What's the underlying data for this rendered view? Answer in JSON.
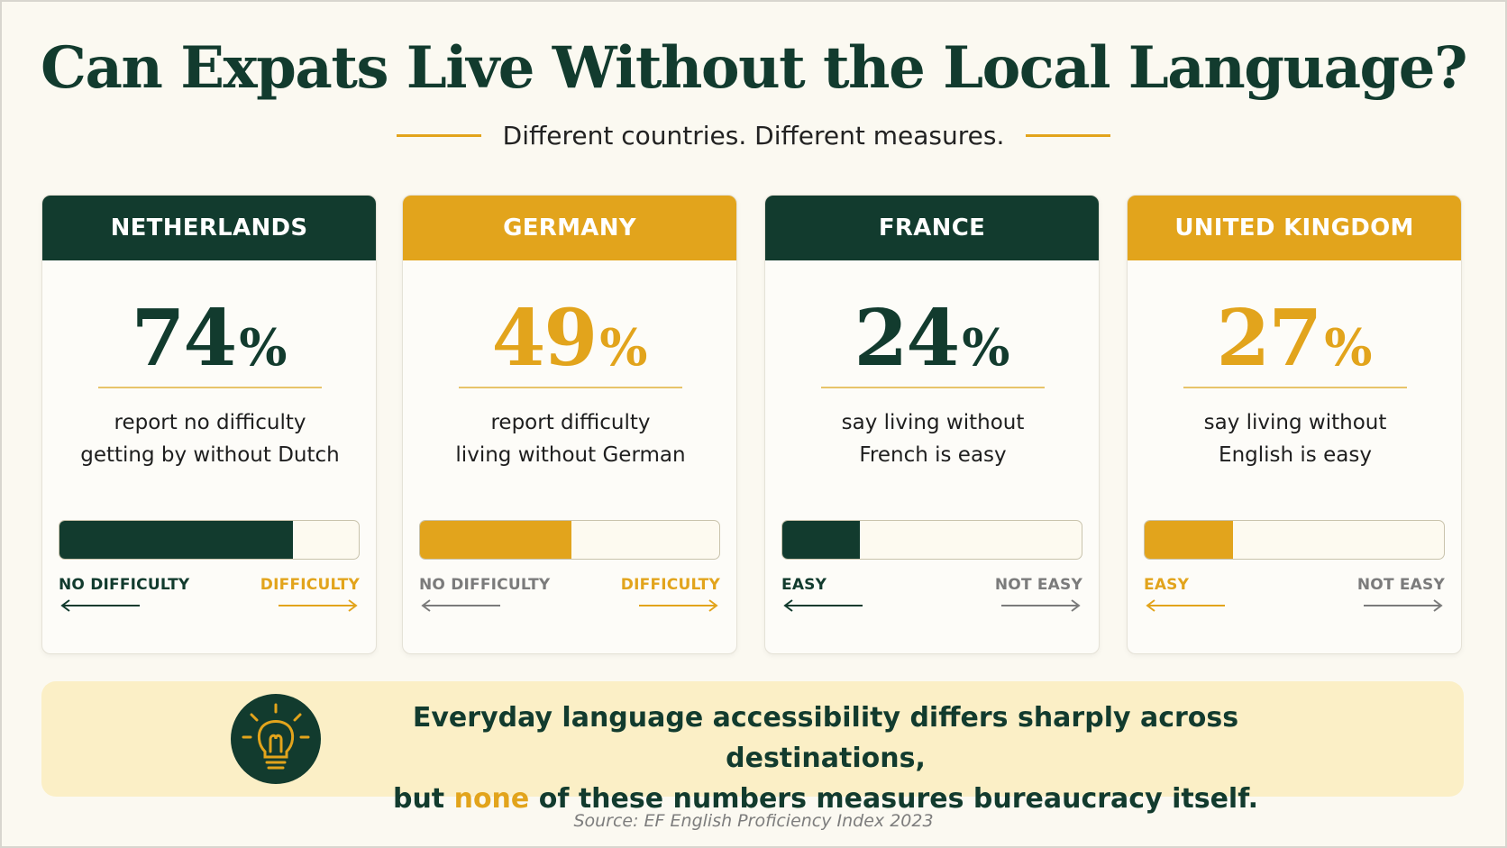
{
  "title": "Can Expats Live Without the Local Language?",
  "subtitle": "Different countries. Different measures.",
  "colors": {
    "dark_green": "#123b2e",
    "gold": "#e2a41c",
    "gray": "#7b7b7b",
    "background": "#fbf9f1",
    "callout_background": "#fbefc6"
  },
  "cards": [
    {
      "country": "NETHERLANDS",
      "theme": "dark",
      "percent": "74",
      "percent_sign": "%",
      "fill_fraction": 0.78,
      "description_line1": "report no difficulty",
      "description_line2": "getting by without Dutch",
      "left_label": "NO DIFFICULTY",
      "right_label": "DIFFICULTY",
      "left_label_color": "dark",
      "right_label_color": "gold"
    },
    {
      "country": "GERMANY",
      "theme": "gold",
      "percent": "49",
      "percent_sign": "%",
      "fill_fraction": 0.505,
      "description_line1": "report difficulty",
      "description_line2": "living without German",
      "left_label": "NO DIFFICULTY",
      "right_label": "DIFFICULTY",
      "left_label_color": "gray",
      "right_label_color": "gold"
    },
    {
      "country": "FRANCE",
      "theme": "dark",
      "percent": "24",
      "percent_sign": "%",
      "fill_fraction": 0.26,
      "description_line1": "say living without",
      "description_line2": "French is easy",
      "left_label": "EASY",
      "right_label": "NOT EASY",
      "left_label_color": "dark",
      "right_label_color": "gray"
    },
    {
      "country": "UNITED KINGDOM",
      "theme": "gold",
      "percent": "27",
      "percent_sign": "%",
      "fill_fraction": 0.295,
      "description_line1": "say living without",
      "description_line2": "English is easy",
      "left_label": "EASY",
      "right_label": "NOT EASY",
      "left_label_color": "gold",
      "right_label_color": "gray"
    }
  ],
  "callout": {
    "icon": "lightbulb-icon",
    "line1": "Everyday language accessibility differs sharply across destinations,",
    "line2_pre": "but ",
    "line2_highlight": "none",
    "line2_post": " of these numbers measures bureaucracy itself."
  },
  "source": "Source: EF English Proficiency Index 2023"
}
